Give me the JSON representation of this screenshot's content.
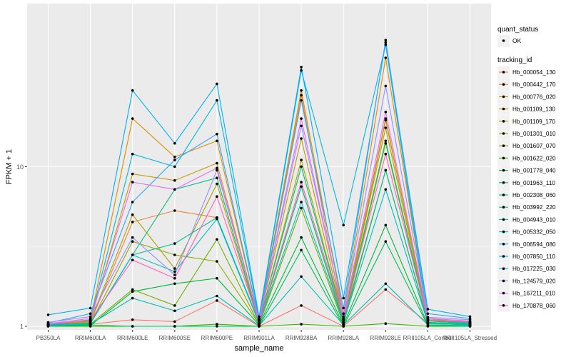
{
  "chart_data": {
    "type": "line",
    "title": "",
    "xlabel": "sample_name",
    "ylabel": "FPKM + 1",
    "y_scale": "log10",
    "ylim": [
      0.95,
      105
    ],
    "y_ticks": [
      1,
      10
    ],
    "y_tick_labels": [
      "1",
      "10"
    ],
    "grid": true,
    "legend_position": "right",
    "categories": [
      "PB350LA",
      "RRIM600LA",
      "RRIM600LE",
      "RRIM600SE",
      "RRIM600PE",
      "RRIM901LA",
      "RRIM928BA",
      "RRIM928LA",
      "RRIM928LE",
      "RRII105LA_Control",
      "RRII105LA_Stressed"
    ],
    "legend_shape": {
      "title": "quant_status",
      "items": [
        {
          "label": "OK",
          "marker": "point"
        }
      ]
    },
    "legend_color_title": "tracking_id",
    "series": [
      {
        "name": "Hb_000054_130",
        "color": "#F8766D",
        "values": [
          1.02,
          1.03,
          1.1,
          1.07,
          1.45,
          1.0,
          1.35,
          1.0,
          1.7,
          1.05,
          1.03
        ]
      },
      {
        "name": "Hb_000442_170",
        "color": "#EC8239",
        "values": [
          1.02,
          1.06,
          4.5,
          5.3,
          4.8,
          1.05,
          28.0,
          1.05,
          19.5,
          1.1,
          1.05
        ]
      },
      {
        "name": "Hb_000776_020",
        "color": "#DB8E00",
        "values": [
          1.03,
          1.1,
          20.0,
          11.5,
          14.5,
          1.1,
          30.0,
          1.2,
          48.0,
          1.12,
          1.05
        ]
      },
      {
        "name": "Hb_001109_130",
        "color": "#C79800",
        "values": [
          1.02,
          1.08,
          9.0,
          8.2,
          10.5,
          1.08,
          15.0,
          1.1,
          20.0,
          1.1,
          1.04
        ]
      },
      {
        "name": "Hb_001109_170",
        "color": "#AFA100",
        "values": [
          1.03,
          1.07,
          5.0,
          2.3,
          7.8,
          1.05,
          11.0,
          1.1,
          17.5,
          1.08,
          1.06
        ]
      },
      {
        "name": "Hb_001301_010",
        "color": "#96A900",
        "values": [
          1.01,
          1.04,
          3.4,
          2.8,
          2.55,
          1.03,
          7.5,
          1.05,
          14.0,
          1.06,
          1.03
        ]
      },
      {
        "name": "Hb_001607_070",
        "color": "#72B000",
        "values": [
          1.01,
          1.03,
          1.7,
          1.35,
          3.5,
          1.02,
          5.5,
          1.03,
          9.5,
          1.04,
          1.02
        ]
      },
      {
        "name": "Hb_001622_020",
        "color": "#3BB600",
        "values": [
          1.0,
          1.0,
          1.0,
          1.0,
          1.03,
          1.0,
          1.03,
          1.0,
          1.04,
          1.0,
          1.0
        ]
      },
      {
        "name": "Hb_001778_040",
        "color": "#00BA38",
        "values": [
          1.0,
          1.01,
          1.65,
          1.85,
          2.0,
          1.02,
          3.6,
          1.02,
          4.3,
          1.02,
          1.01
        ]
      },
      {
        "name": "Hb_001963_110",
        "color": "#00BD5F",
        "values": [
          1.01,
          1.02,
          1.0,
          1.0,
          1.0,
          1.0,
          3.0,
          1.0,
          3.4,
          1.01,
          1.0
        ]
      },
      {
        "name": "Hb_002308_060",
        "color": "#00BF7D",
        "values": [
          1.02,
          1.05,
          2.8,
          7.2,
          8.5,
          1.07,
          10.0,
          1.1,
          14.5,
          1.08,
          1.04
        ]
      },
      {
        "name": "Hb_003992_220",
        "color": "#00C097",
        "values": [
          1.02,
          1.05,
          2.8,
          3.3,
          4.8,
          1.06,
          7.5,
          1.08,
          9.5,
          1.06,
          1.03
        ]
      },
      {
        "name": "Hb_004943_010",
        "color": "#00BFB0",
        "values": [
          1.01,
          1.03,
          1.5,
          1.25,
          1.55,
          1.01,
          2.05,
          1.02,
          1.85,
          1.02,
          1.01
        ]
      },
      {
        "name": "Hb_005332_050",
        "color": "#00BCC8",
        "values": [
          1.01,
          1.04,
          2.8,
          2.2,
          4.7,
          1.04,
          6.0,
          1.06,
          7.2,
          1.05,
          1.02
        ]
      },
      {
        "name": "Hb_006594_080",
        "color": "#00B8DC",
        "values": [
          1.02,
          1.1,
          12.0,
          10.0,
          26.0,
          1.12,
          40.0,
          4.3,
          58.0,
          1.1,
          1.06
        ]
      },
      {
        "name": "Hb_007850_110",
        "color": "#00B0F6",
        "values": [
          1.18,
          1.3,
          30.0,
          14.0,
          33.0,
          1.15,
          42.0,
          1.5,
          60.0,
          1.28,
          1.15
        ]
      },
      {
        "name": "Hb_017225_030",
        "color": "#35A2FF",
        "values": [
          1.05,
          1.2,
          6.0,
          11.0,
          16.0,
          1.1,
          26.0,
          1.3,
          62.0,
          1.2,
          1.12
        ]
      },
      {
        "name": "Hb_124579_020",
        "color": "#9590FF",
        "values": [
          1.06,
          1.15,
          3.6,
          2.1,
          9.5,
          1.1,
          18.0,
          1.2,
          32.0,
          1.14,
          1.1
        ]
      },
      {
        "name": "Hb_167211_010",
        "color": "#E76BF3",
        "values": [
          1.04,
          1.12,
          8.0,
          7.2,
          9.8,
          1.08,
          20.0,
          1.15,
          22.0,
          1.12,
          1.08
        ]
      },
      {
        "name": "Hb_170878_060",
        "color": "#FF62BC",
        "values": [
          1.03,
          1.09,
          2.6,
          2.0,
          6.5,
          1.06,
          8.0,
          1.12,
          12.0,
          1.1,
          1.07
        ]
      }
    ]
  }
}
